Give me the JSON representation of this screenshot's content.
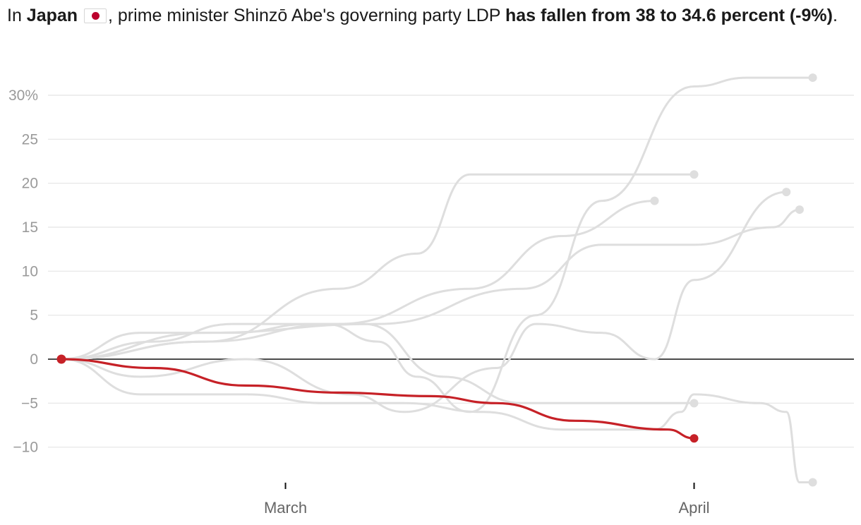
{
  "title": {
    "t1": "In ",
    "country": "Japan",
    "t2": ", prime minister Shinzō Abe's governing party LDP ",
    "highlight": "has fallen from 38 to 34.6 percent (-9%)",
    "t3": "."
  },
  "chart_data": {
    "type": "line",
    "y_unit": "percent change",
    "ylim": [
      -14,
      32
    ],
    "y_ticks": [
      30,
      25,
      20,
      15,
      10,
      5,
      0,
      -5,
      -10
    ],
    "y_tick_labels": [
      "30%",
      "25",
      "20",
      "15",
      "10",
      "5",
      "0",
      "−5",
      "−10"
    ],
    "x_ticks": [
      {
        "date": "2020-03-01",
        "label": "March"
      },
      {
        "date": "2020-04-01",
        "label": "April"
      }
    ],
    "grid": true,
    "legend": "none",
    "highlight_color": "#c62127",
    "context_color": "#dedede",
    "series": [
      {
        "highlight": true,
        "points": [
          [
            "2020-02-13",
            0
          ],
          [
            "2020-02-20",
            -1
          ],
          [
            "2020-02-27",
            -3
          ],
          [
            "2020-03-05",
            -3.8
          ],
          [
            "2020-03-12",
            -4.2
          ],
          [
            "2020-03-17",
            -5
          ],
          [
            "2020-03-23",
            -7
          ],
          [
            "2020-03-30",
            -8
          ],
          [
            "2020-04-01",
            -9
          ]
        ]
      },
      {
        "points": [
          [
            "2020-02-13",
            0
          ],
          [
            "2020-02-19",
            -2
          ],
          [
            "2020-02-27",
            0
          ],
          [
            "2020-03-06",
            -4
          ],
          [
            "2020-03-10",
            -6
          ],
          [
            "2020-03-17",
            -1
          ],
          [
            "2020-03-20",
            4
          ],
          [
            "2020-03-25",
            3
          ],
          [
            "2020-03-29",
            0
          ],
          [
            "2020-04-01",
            9
          ],
          [
            "2020-04-08",
            19
          ]
        ]
      },
      {
        "points": [
          [
            "2020-02-13",
            0
          ],
          [
            "2020-02-19",
            -4
          ],
          [
            "2020-02-27",
            -4
          ],
          [
            "2020-03-04",
            -5
          ],
          [
            "2020-03-10",
            -5
          ],
          [
            "2020-03-16",
            -6
          ],
          [
            "2020-03-22",
            -8
          ],
          [
            "2020-03-29",
            -8
          ],
          [
            "2020-03-31",
            -6
          ],
          [
            "2020-04-01",
            -4
          ],
          [
            "2020-04-06",
            -5
          ],
          [
            "2020-04-08",
            -6
          ],
          [
            "2020-04-09",
            -14
          ],
          [
            "2020-04-10",
            -14
          ]
        ]
      },
      {
        "points": [
          [
            "2020-02-13",
            0
          ],
          [
            "2020-02-19",
            3
          ],
          [
            "2020-02-26",
            3
          ],
          [
            "2020-03-03",
            4
          ],
          [
            "2020-03-07",
            4
          ],
          [
            "2020-03-13",
            -2
          ],
          [
            "2020-03-19",
            -5
          ],
          [
            "2020-03-25",
            -5
          ],
          [
            "2020-04-01",
            -5
          ]
        ]
      },
      {
        "points": [
          [
            "2020-02-13",
            0
          ],
          [
            "2020-02-20",
            2
          ],
          [
            "2020-02-26",
            4
          ],
          [
            "2020-03-04",
            4
          ],
          [
            "2020-03-08",
            2
          ],
          [
            "2020-03-11",
            -2
          ],
          [
            "2020-03-15",
            -6
          ],
          [
            "2020-03-20",
            5
          ],
          [
            "2020-03-25",
            18
          ],
          [
            "2020-04-01",
            31
          ],
          [
            "2020-04-05",
            32
          ],
          [
            "2020-04-10",
            32
          ]
        ]
      },
      {
        "points": [
          [
            "2020-02-13",
            0
          ],
          [
            "2020-02-24",
            2
          ],
          [
            "2020-03-05",
            8
          ],
          [
            "2020-03-11",
            12
          ],
          [
            "2020-03-15",
            21
          ],
          [
            "2020-03-22",
            21
          ],
          [
            "2020-04-01",
            21
          ]
        ]
      },
      {
        "points": [
          [
            "2020-02-13",
            0
          ],
          [
            "2020-02-24",
            2
          ],
          [
            "2020-03-05",
            4
          ],
          [
            "2020-03-15",
            8
          ],
          [
            "2020-03-22",
            14
          ],
          [
            "2020-03-29",
            18
          ]
        ]
      },
      {
        "points": [
          [
            "2020-02-13",
            0
          ],
          [
            "2020-02-24",
            3
          ],
          [
            "2020-03-08",
            4
          ],
          [
            "2020-03-19",
            8
          ],
          [
            "2020-03-25",
            13
          ],
          [
            "2020-04-01",
            13
          ],
          [
            "2020-04-07",
            15
          ],
          [
            "2020-04-09",
            17
          ]
        ]
      }
    ]
  }
}
